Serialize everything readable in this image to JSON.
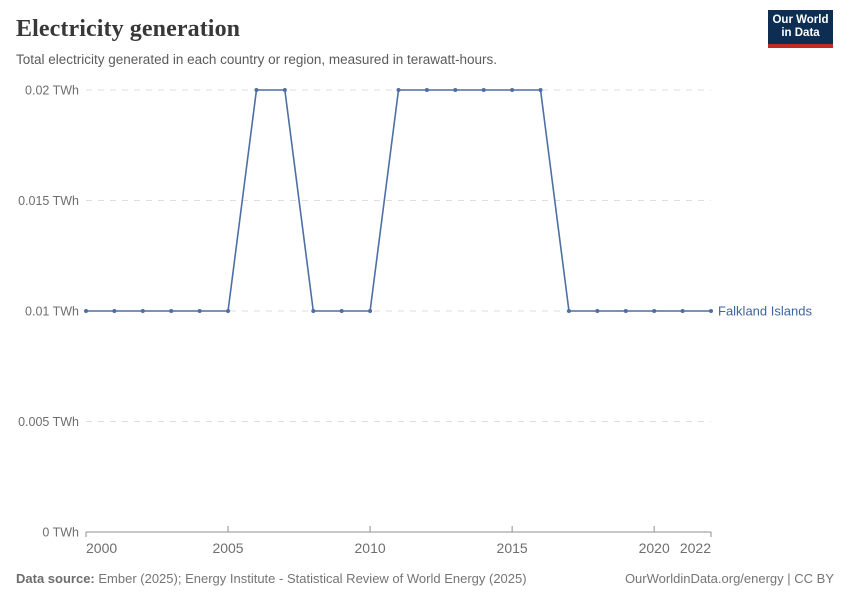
{
  "header": {
    "title": "Electricity generation",
    "subtitle": "Total electricity generated in each country or region, measured in terawatt-hours.",
    "logo": {
      "line1": "Our World",
      "line2": "in Data"
    }
  },
  "chart_data": {
    "type": "line",
    "title": "Electricity generation",
    "xlabel": "",
    "ylabel": "",
    "unit": "TWh",
    "grid": "horizontal-dashed",
    "legend_position": "end-of-line-label",
    "xlim": [
      2000,
      2022
    ],
    "ylim": [
      0,
      0.02
    ],
    "x": [
      2000,
      2001,
      2002,
      2003,
      2004,
      2005,
      2006,
      2007,
      2008,
      2009,
      2010,
      2011,
      2012,
      2013,
      2014,
      2015,
      2016,
      2017,
      2018,
      2019,
      2020,
      2021,
      2022
    ],
    "series": [
      {
        "name": "Falkland Islands",
        "color": "#4e6fa3",
        "values": [
          0.01,
          0.01,
          0.01,
          0.01,
          0.01,
          0.01,
          0.02,
          0.02,
          0.01,
          0.01,
          0.01,
          0.02,
          0.02,
          0.02,
          0.02,
          0.02,
          0.02,
          0.01,
          0.01,
          0.01,
          0.01,
          0.01,
          0.01
        ]
      }
    ],
    "xticks": {
      "values": [
        2000,
        2005,
        2010,
        2015,
        2020,
        2022
      ],
      "labels": [
        "2000",
        "2005",
        "2010",
        "2015",
        "2020",
        "2022"
      ]
    },
    "yticks": {
      "values": [
        0,
        0.005,
        0.01,
        0.015,
        0.02
      ],
      "labels": [
        "0 TWh",
        "0.005 TWh",
        "0.01 TWh",
        "0.015 TWh",
        "0.02 TWh"
      ]
    }
  },
  "footer": {
    "data_source_label": "Data source:",
    "data_source_text": " Ember (2025); Energy Institute - Statistical Review of World Energy (2025)",
    "link_text": "OurWorldinData.org/energy | CC BY"
  },
  "colors": {
    "line": "#4e6fa3",
    "series_label": "#3d649e",
    "gridline": "#dedede",
    "axis": "#8f8f8f",
    "tick_label": "#6e6e6e",
    "logo_navy": "#0d2e52",
    "logo_red": "#be2d23"
  }
}
